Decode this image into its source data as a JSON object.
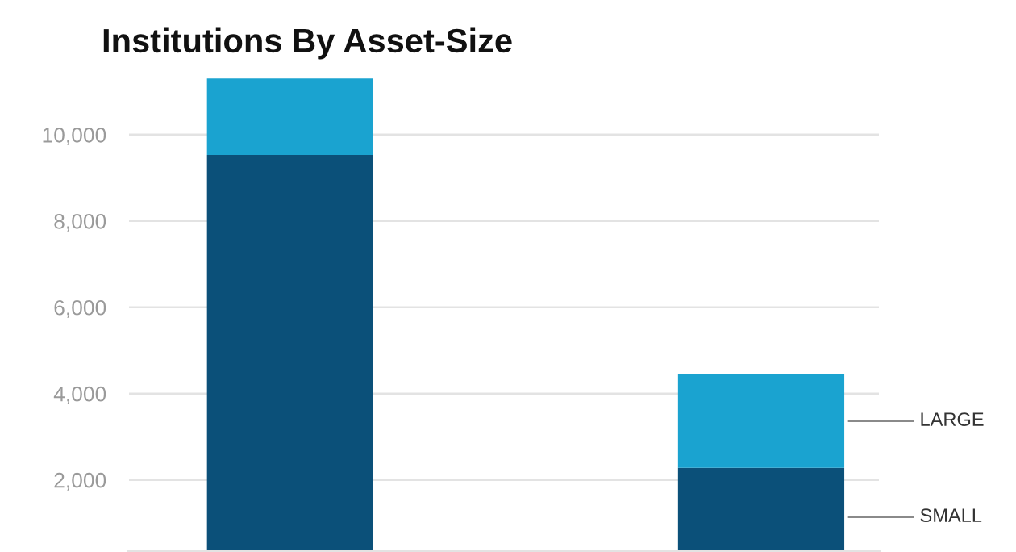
{
  "chart_data": {
    "type": "bar",
    "title": "Institutions By Asset-Size",
    "stacked": true,
    "categories": [
      null,
      null
    ],
    "series": [
      {
        "name": "SMALL",
        "color": "#0b5079",
        "values": [
          9530,
          2280
        ]
      },
      {
        "name": "LARGE",
        "color": "#1aa3d0",
        "values": [
          1770,
          2170
        ]
      }
    ],
    "ylim": [
      330,
      11400
    ],
    "yticks": [
      {
        "value": 2000,
        "label": "2,000"
      },
      {
        "value": 4000,
        "label": "4,000"
      },
      {
        "value": 6000,
        "label": "6,000"
      },
      {
        "value": 8000,
        "label": "8,000"
      },
      {
        "value": 10000,
        "label": "10,000"
      }
    ],
    "grid": "y",
    "legend": "right"
  }
}
